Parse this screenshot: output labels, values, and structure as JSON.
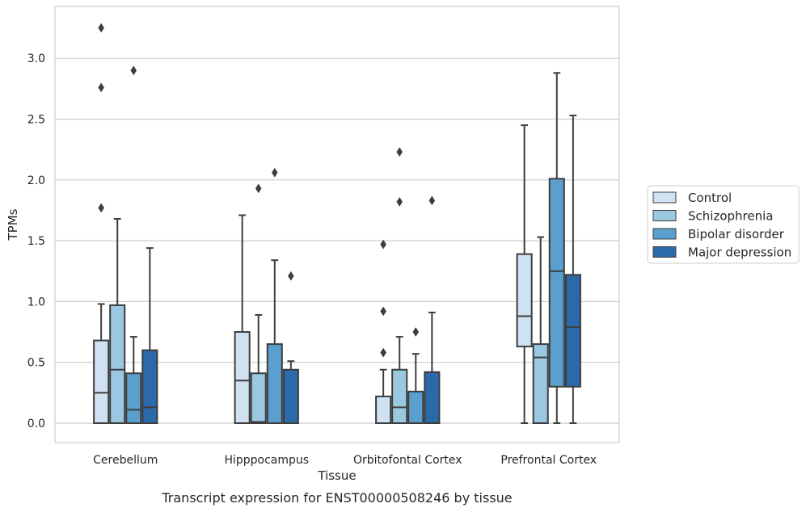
{
  "caption": "Transcript expression for ENST00000508246 by tissue",
  "chart_data": {
    "type": "boxplot",
    "title": "",
    "xlabel": "Tissue",
    "ylabel": "TPMs",
    "ylim": [
      -0.16,
      3.42
    ],
    "yticks": [
      0.0,
      0.5,
      1.0,
      1.5,
      2.0,
      2.5,
      3.0
    ],
    "ytick_labels": [
      "0.0",
      "0.5",
      "1.0",
      "1.5",
      "2.0",
      "2.5",
      "3.0"
    ],
    "grid": "horizontal",
    "legend_position": "right",
    "categories": [
      "Cerebellum",
      "Hipppocampus",
      "Orbitofontal Cortex",
      "Prefrontal Cortex"
    ],
    "series": [
      {
        "name": "Control",
        "color": "#d0e1f2",
        "boxes": [
          {
            "whislo": 0.0,
            "q1": 0.0,
            "med": 0.25,
            "q3": 0.68,
            "whishi": 0.98,
            "fliers": [
              1.77,
              2.76,
              3.25
            ]
          },
          {
            "whislo": 0.0,
            "q1": 0.0,
            "med": 0.35,
            "q3": 0.75,
            "whishi": 1.71,
            "fliers": []
          },
          {
            "whislo": 0.0,
            "q1": 0.0,
            "med": 0.0,
            "q3": 0.22,
            "whishi": 0.44,
            "fliers": [
              0.58,
              0.92,
              1.47
            ]
          },
          {
            "whislo": 0.0,
            "q1": 0.63,
            "med": 0.88,
            "q3": 1.39,
            "whishi": 2.45,
            "fliers": []
          }
        ]
      },
      {
        "name": "Schizophrenia",
        "color": "#9ac8e0",
        "boxes": [
          {
            "whislo": 0.0,
            "q1": 0.0,
            "med": 0.44,
            "q3": 0.97,
            "whishi": 1.68,
            "fliers": []
          },
          {
            "whislo": 0.0,
            "q1": 0.0,
            "med": 0.01,
            "q3": 0.41,
            "whishi": 0.89,
            "fliers": [
              1.93
            ]
          },
          {
            "whislo": 0.0,
            "q1": 0.0,
            "med": 0.13,
            "q3": 0.44,
            "whishi": 0.71,
            "fliers": [
              1.82,
              2.23
            ]
          },
          {
            "whislo": 0.0,
            "q1": 0.0,
            "med": 0.54,
            "q3": 0.65,
            "whishi": 1.53,
            "fliers": []
          }
        ]
      },
      {
        "name": "Bipolar disorder",
        "color": "#5a9fcd",
        "boxes": [
          {
            "whislo": 0.0,
            "q1": 0.0,
            "med": 0.11,
            "q3": 0.41,
            "whishi": 0.71,
            "fliers": [
              2.9
            ]
          },
          {
            "whislo": 0.0,
            "q1": 0.0,
            "med": 0.0,
            "q3": 0.65,
            "whishi": 1.34,
            "fliers": [
              2.06
            ]
          },
          {
            "whislo": 0.0,
            "q1": 0.0,
            "med": 0.0,
            "q3": 0.26,
            "whishi": 0.57,
            "fliers": [
              0.75
            ]
          },
          {
            "whislo": 0.0,
            "q1": 0.3,
            "med": 1.25,
            "q3": 2.01,
            "whishi": 2.88,
            "fliers": []
          }
        ]
      },
      {
        "name": "Major depression",
        "color": "#2b6aa8",
        "boxes": [
          {
            "whislo": 0.0,
            "q1": 0.0,
            "med": 0.13,
            "q3": 0.6,
            "whishi": 1.44,
            "fliers": []
          },
          {
            "whislo": 0.0,
            "q1": 0.0,
            "med": 0.0,
            "q3": 0.44,
            "whishi": 0.51,
            "fliers": [
              1.21
            ]
          },
          {
            "whislo": 0.0,
            "q1": 0.0,
            "med": 0.0,
            "q3": 0.42,
            "whishi": 0.91,
            "fliers": [
              1.83
            ]
          },
          {
            "whislo": 0.0,
            "q1": 0.3,
            "med": 0.79,
            "q3": 1.22,
            "whishi": 2.53,
            "fliers": []
          }
        ]
      }
    ]
  },
  "colors": {
    "grid": "#cccccc",
    "frame": "#cccccc",
    "stroke": "#3d3d3d",
    "text": "#262626"
  }
}
